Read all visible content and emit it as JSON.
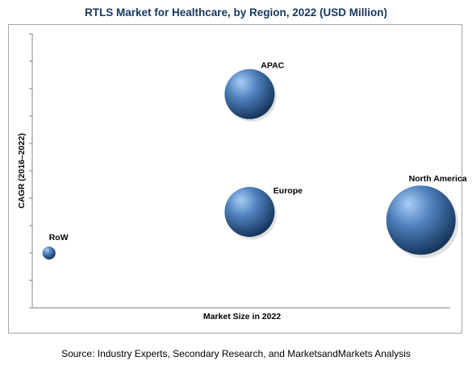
{
  "chart_data": {
    "type": "bubble",
    "title": "RTLS Market for Healthcare, by Region, 2022 (USD Million)",
    "xlabel": "Market Size in 2022",
    "ylabel": "CAGR (2016–2022)",
    "xlim": [
      0,
      100
    ],
    "ylim": [
      0,
      100
    ],
    "grid": false,
    "axis_tick_labels": false,
    "series": [
      {
        "name": "APAC",
        "x": 52,
        "y": 78,
        "size": 31
      },
      {
        "name": "Europe",
        "x": 52,
        "y": 35,
        "size": 31
      },
      {
        "name": "North America",
        "x": 93,
        "y": 32,
        "size": 43
      },
      {
        "name": "RoW",
        "x": 4,
        "y": 20,
        "size": 8
      }
    ],
    "colors": {
      "bubble_light": "#a9cdf7",
      "bubble_mid": "#4f81bd",
      "bubble_dark": "#17375e",
      "title": "#17375e",
      "axis": "#808080"
    }
  },
  "source": "Source: Industry Experts, Secondary Research, and MarketsandMarkets Analysis"
}
